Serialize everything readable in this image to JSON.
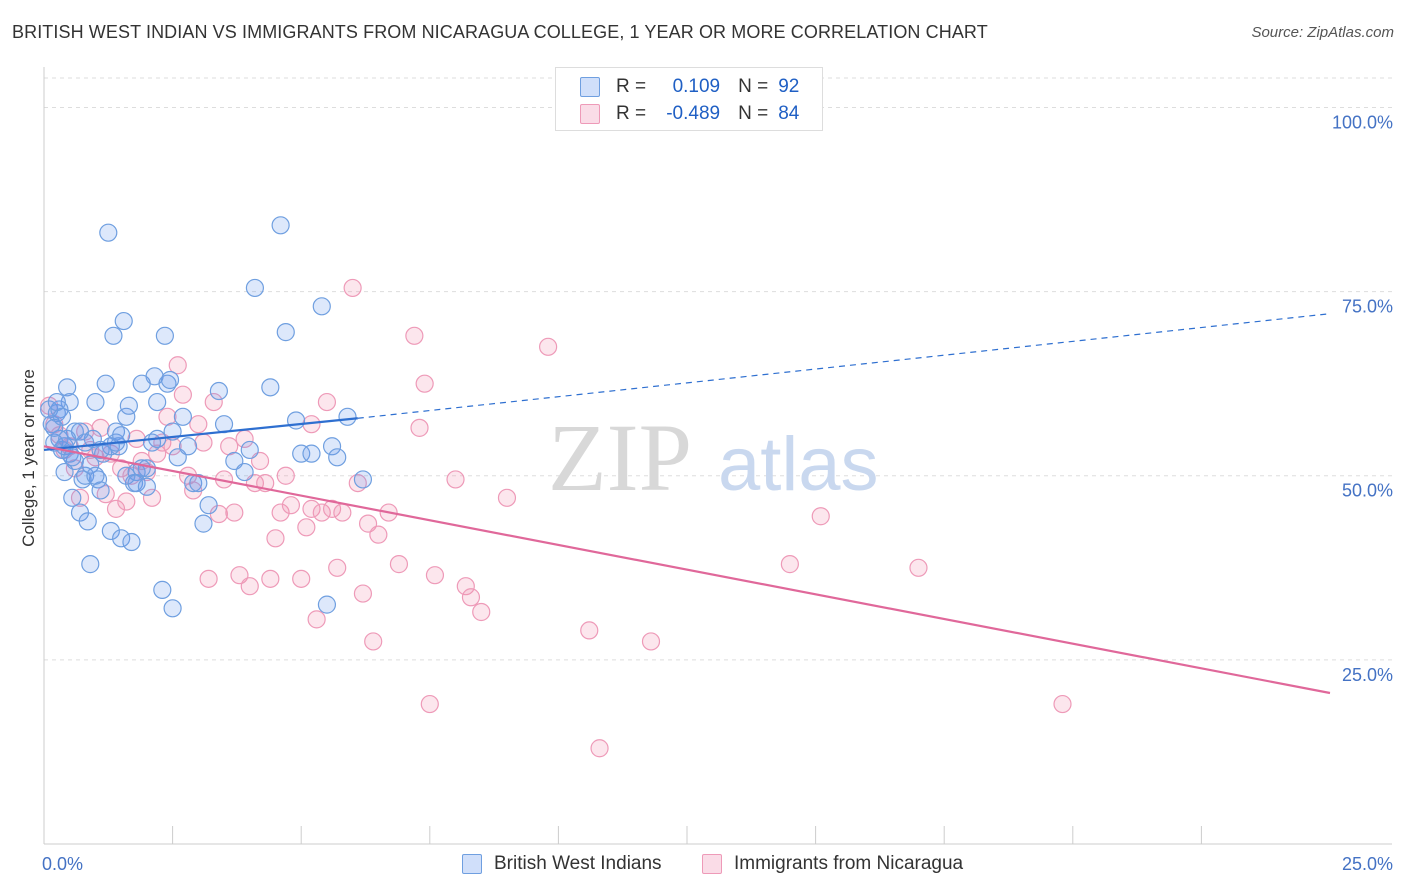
{
  "title": "BRITISH WEST INDIAN VS IMMIGRANTS FROM NICARAGUA COLLEGE, 1 YEAR OR MORE CORRELATION CHART",
  "source": "Source: ZipAtlas.com",
  "watermark": {
    "zip": "ZIP",
    "atlas": "atlas"
  },
  "legend": {
    "r_label": "R =",
    "n_label": "N =",
    "series1": {
      "r": "0.109",
      "n": "92"
    },
    "series2": {
      "r": "-0.489",
      "n": "84"
    }
  },
  "bottom_legend": {
    "series1": "British West Indians",
    "series2": "Immigrants from Nicaragua"
  },
  "colors": {
    "series1_fill": "rgba(100,149,237,0.22)",
    "series1_stroke": "#6f9fe0",
    "series1_line": "#2e6fd0",
    "series2_fill": "rgba(240,140,175,0.22)",
    "series2_stroke": "#ee9ab8",
    "series2_line": "#e0689a",
    "grid": "#dddddd",
    "tick": "#4472c4"
  },
  "chart_data": {
    "type": "scatter",
    "title": "BRITISH WEST INDIAN VS IMMIGRANTS FROM NICARAGUA COLLEGE, 1 YEAR OR MORE CORRELATION CHART",
    "xlabel": "",
    "ylabel": "College, 1 year or more",
    "xlim": [
      0,
      25
    ],
    "ylim": [
      0,
      104
    ],
    "x_ticks": [
      {
        "value": 0,
        "label": "0.0%"
      },
      {
        "value": 25,
        "label": "25.0%"
      }
    ],
    "y_ticks": [
      {
        "value": 100,
        "label": "100.0%"
      },
      {
        "value": 75,
        "label": "75.0%"
      },
      {
        "value": 50,
        "label": "50.0%"
      },
      {
        "value": 25,
        "label": "25.0%"
      }
    ],
    "series": [
      {
        "name": "British West Indians",
        "trend": {
          "x0": 0,
          "y0": 53.5,
          "x1": 6.1,
          "y1": 57.8,
          "dash_to_x": 25,
          "dash_to_y": 72.0
        },
        "points": [
          [
            0.1,
            59.0
          ],
          [
            0.15,
            57.0
          ],
          [
            0.2,
            54.5
          ],
          [
            0.25,
            58.5
          ],
          [
            0.3,
            55.0
          ],
          [
            0.35,
            53.5
          ],
          [
            0.4,
            50.5
          ],
          [
            0.45,
            62.0
          ],
          [
            0.5,
            60.0
          ],
          [
            0.55,
            47.0
          ],
          [
            0.6,
            52.0
          ],
          [
            0.6,
            56.0
          ],
          [
            0.7,
            45.0
          ],
          [
            0.75,
            49.5
          ],
          [
            0.8,
            50.0
          ],
          [
            0.85,
            43.8
          ],
          [
            0.9,
            38.0
          ],
          [
            0.95,
            55.0
          ],
          [
            1.0,
            60.0
          ],
          [
            1.05,
            49.5
          ],
          [
            1.1,
            48.0
          ],
          [
            1.15,
            53.0
          ],
          [
            1.2,
            62.5
          ],
          [
            1.25,
            83.0
          ],
          [
            1.3,
            42.5
          ],
          [
            1.35,
            69.0
          ],
          [
            1.4,
            56.0
          ],
          [
            1.45,
            54.0
          ],
          [
            1.5,
            41.5
          ],
          [
            1.55,
            71.0
          ],
          [
            1.6,
            58.0
          ],
          [
            1.65,
            59.5
          ],
          [
            1.7,
            41.0
          ],
          [
            1.75,
            49.0
          ],
          [
            1.8,
            50.5
          ],
          [
            1.9,
            62.5
          ],
          [
            2.0,
            51.0
          ],
          [
            2.1,
            54.5
          ],
          [
            2.15,
            63.5
          ],
          [
            2.2,
            60.0
          ],
          [
            2.3,
            34.5
          ],
          [
            2.35,
            69.0
          ],
          [
            2.4,
            62.5
          ],
          [
            2.45,
            63.0
          ],
          [
            2.5,
            32.0
          ],
          [
            2.6,
            52.5
          ],
          [
            2.7,
            58.0
          ],
          [
            2.8,
            54.0
          ],
          [
            2.9,
            49.0
          ],
          [
            3.0,
            49.0
          ],
          [
            3.1,
            43.5
          ],
          [
            3.2,
            46.0
          ],
          [
            3.4,
            61.5
          ],
          [
            3.5,
            57.0
          ],
          [
            3.7,
            52.0
          ],
          [
            3.9,
            50.5
          ],
          [
            4.0,
            53.5
          ],
          [
            4.1,
            75.5
          ],
          [
            4.4,
            62.0
          ],
          [
            4.6,
            84.0
          ],
          [
            4.7,
            69.5
          ],
          [
            4.9,
            57.5
          ],
          [
            5.0,
            53.0
          ],
          [
            5.2,
            53.0
          ],
          [
            5.4,
            73.0
          ],
          [
            5.5,
            32.5
          ],
          [
            5.6,
            54.0
          ],
          [
            5.7,
            52.5
          ],
          [
            5.9,
            58.0
          ],
          [
            6.2,
            49.5
          ],
          [
            0.2,
            56.5
          ],
          [
            0.3,
            59.0
          ],
          [
            0.4,
            54.0
          ],
          [
            0.5,
            53.0
          ],
          [
            0.7,
            56.0
          ],
          [
            0.8,
            54.5
          ],
          [
            0.9,
            51.5
          ],
          [
            1.0,
            50.0
          ],
          [
            1.1,
            53.5
          ],
          [
            1.3,
            54.0
          ],
          [
            1.4,
            54.5
          ],
          [
            1.5,
            55.5
          ],
          [
            1.6,
            50.0
          ],
          [
            1.8,
            49.0
          ],
          [
            1.9,
            51.0
          ],
          [
            2.0,
            48.5
          ],
          [
            2.2,
            55.0
          ],
          [
            2.5,
            56.0
          ],
          [
            0.25,
            60.0
          ],
          [
            0.35,
            58.0
          ],
          [
            0.45,
            55.0
          ],
          [
            0.55,
            52.5
          ]
        ]
      },
      {
        "name": "Immigrants from Nicaragua",
        "trend": {
          "x0": 0,
          "y0": 54.0,
          "x1": 25,
          "y1": 20.5
        },
        "points": [
          [
            0.1,
            59.5
          ],
          [
            0.2,
            57.0
          ],
          [
            0.3,
            55.5
          ],
          [
            0.4,
            53.5
          ],
          [
            0.5,
            54.0
          ],
          [
            0.6,
            51.0
          ],
          [
            0.7,
            47.0
          ],
          [
            0.8,
            56.0
          ],
          [
            0.9,
            53.5
          ],
          [
            1.0,
            52.5
          ],
          [
            1.1,
            56.5
          ],
          [
            1.2,
            47.5
          ],
          [
            1.3,
            53.0
          ],
          [
            1.4,
            45.5
          ],
          [
            1.5,
            51.0
          ],
          [
            1.6,
            46.5
          ],
          [
            1.7,
            50.0
          ],
          [
            1.8,
            55.0
          ],
          [
            1.9,
            52.0
          ],
          [
            2.0,
            50.5
          ],
          [
            2.1,
            47.0
          ],
          [
            2.2,
            53.0
          ],
          [
            2.3,
            54.5
          ],
          [
            2.4,
            58.0
          ],
          [
            2.5,
            54.0
          ],
          [
            2.6,
            65.0
          ],
          [
            2.7,
            61.0
          ],
          [
            2.8,
            50.0
          ],
          [
            2.9,
            48.0
          ],
          [
            3.0,
            57.0
          ],
          [
            3.1,
            54.5
          ],
          [
            3.2,
            36.0
          ],
          [
            3.3,
            60.0
          ],
          [
            3.4,
            44.8
          ],
          [
            3.5,
            49.5
          ],
          [
            3.6,
            54.0
          ],
          [
            3.7,
            45.0
          ],
          [
            3.8,
            36.5
          ],
          [
            3.9,
            55.0
          ],
          [
            4.0,
            35.0
          ],
          [
            4.1,
            49.0
          ],
          [
            4.2,
            52.0
          ],
          [
            4.3,
            49.0
          ],
          [
            4.4,
            36.0
          ],
          [
            4.5,
            41.5
          ],
          [
            4.6,
            45.0
          ],
          [
            4.7,
            50.0
          ],
          [
            4.8,
            46.0
          ],
          [
            5.0,
            36.0
          ],
          [
            5.1,
            43.0
          ],
          [
            5.2,
            45.5
          ],
          [
            5.3,
            30.5
          ],
          [
            5.4,
            45.0
          ],
          [
            5.5,
            60.0
          ],
          [
            5.6,
            45.5
          ],
          [
            5.7,
            37.5
          ],
          [
            5.8,
            45.0
          ],
          [
            6.0,
            75.5
          ],
          [
            6.1,
            49.0
          ],
          [
            6.2,
            34.0
          ],
          [
            6.3,
            43.5
          ],
          [
            6.4,
            27.5
          ],
          [
            6.5,
            42.0
          ],
          [
            6.7,
            45.0
          ],
          [
            6.9,
            38.0
          ],
          [
            7.2,
            69.0
          ],
          [
            7.4,
            62.5
          ],
          [
            7.5,
            19.0
          ],
          [
            7.6,
            36.5
          ],
          [
            8.0,
            49.5
          ],
          [
            8.2,
            35.0
          ],
          [
            8.3,
            33.5
          ],
          [
            8.5,
            31.5
          ],
          [
            9.0,
            47.0
          ],
          [
            9.8,
            67.5
          ],
          [
            10.6,
            29.0
          ],
          [
            10.8,
            13.0
          ],
          [
            11.8,
            27.5
          ],
          [
            14.5,
            38.0
          ],
          [
            15.1,
            44.5
          ],
          [
            17.0,
            37.5
          ],
          [
            19.8,
            19.0
          ],
          [
            7.3,
            56.5
          ],
          [
            5.2,
            57.0
          ]
        ]
      }
    ]
  }
}
